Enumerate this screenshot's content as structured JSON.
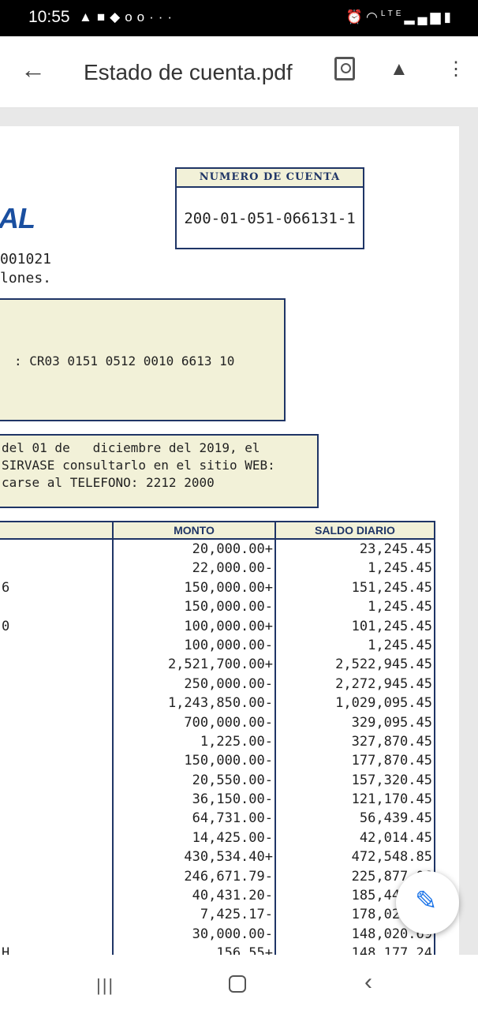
{
  "status_bar": {
    "time": "10:55",
    "left_icons": [
      "warning-icon",
      "facebook-icon",
      "shopping-bag-icon",
      "voicemail-icon",
      "more-dots-icon"
    ],
    "right_icons": [
      "alarm-icon",
      "wifi-icon",
      "lte-icon",
      "signal-icon",
      "battery-icon"
    ],
    "lte_label": "LTE"
  },
  "app_bar": {
    "title": "Estado de cuenta.pdf"
  },
  "document": {
    "account_header": "NUMERO DE CUENTA",
    "account_number": "200-01-051-066131-1",
    "logo_fragment": "AL",
    "line1": "001021",
    "line2": "lones.",
    "iban_line": ": CR03 0151 0512 0010 6613 10",
    "notice_lines": [
      "del 01 de   diciembre del 2019, el",
      "SIRVASE consultarlo en el sitio WEB:",
      "carse al TELEFONO: 2212 2000"
    ],
    "table": {
      "col_monto": "MONTO",
      "col_saldo": "SALDO DIARIO",
      "first_col": [
        "",
        "",
        "6",
        "",
        "0",
        "",
        "",
        "",
        "",
        "",
        "",
        "",
        "",
        "",
        "",
        "",
        "",
        "",
        "",
        "",
        "",
        "H"
      ],
      "monto": [
        "20,000.00+",
        "22,000.00-",
        "150,000.00+",
        "150,000.00-",
        "100,000.00+",
        "100,000.00-",
        "2,521,700.00+",
        "250,000.00-",
        "1,243,850.00-",
        "700,000.00-",
        "1,225.00-",
        "150,000.00-",
        "20,550.00-",
        "36,150.00-",
        "64,731.00-",
        "14,425.00-",
        "430,534.40+",
        "246,671.79-",
        "40,431.20-",
        "7,425.17-",
        "30,000.00-",
        "156.55+"
      ],
      "saldo": [
        "23,245.45",
        "1,245.45",
        "151,245.45",
        "1,245.45",
        "101,245.45",
        "1,245.45",
        "2,522,945.45",
        "2,272,945.45",
        "1,029,095.45",
        "329,095.45",
        "327,870.45",
        "177,870.45",
        "157,320.45",
        "121,170.45",
        "56,439.45",
        "42,014.45",
        "472,548.85",
        "225,877.06",
        "185,445.86",
        "178,020.69",
        "148,020.69",
        "148,177.24"
      ]
    }
  }
}
